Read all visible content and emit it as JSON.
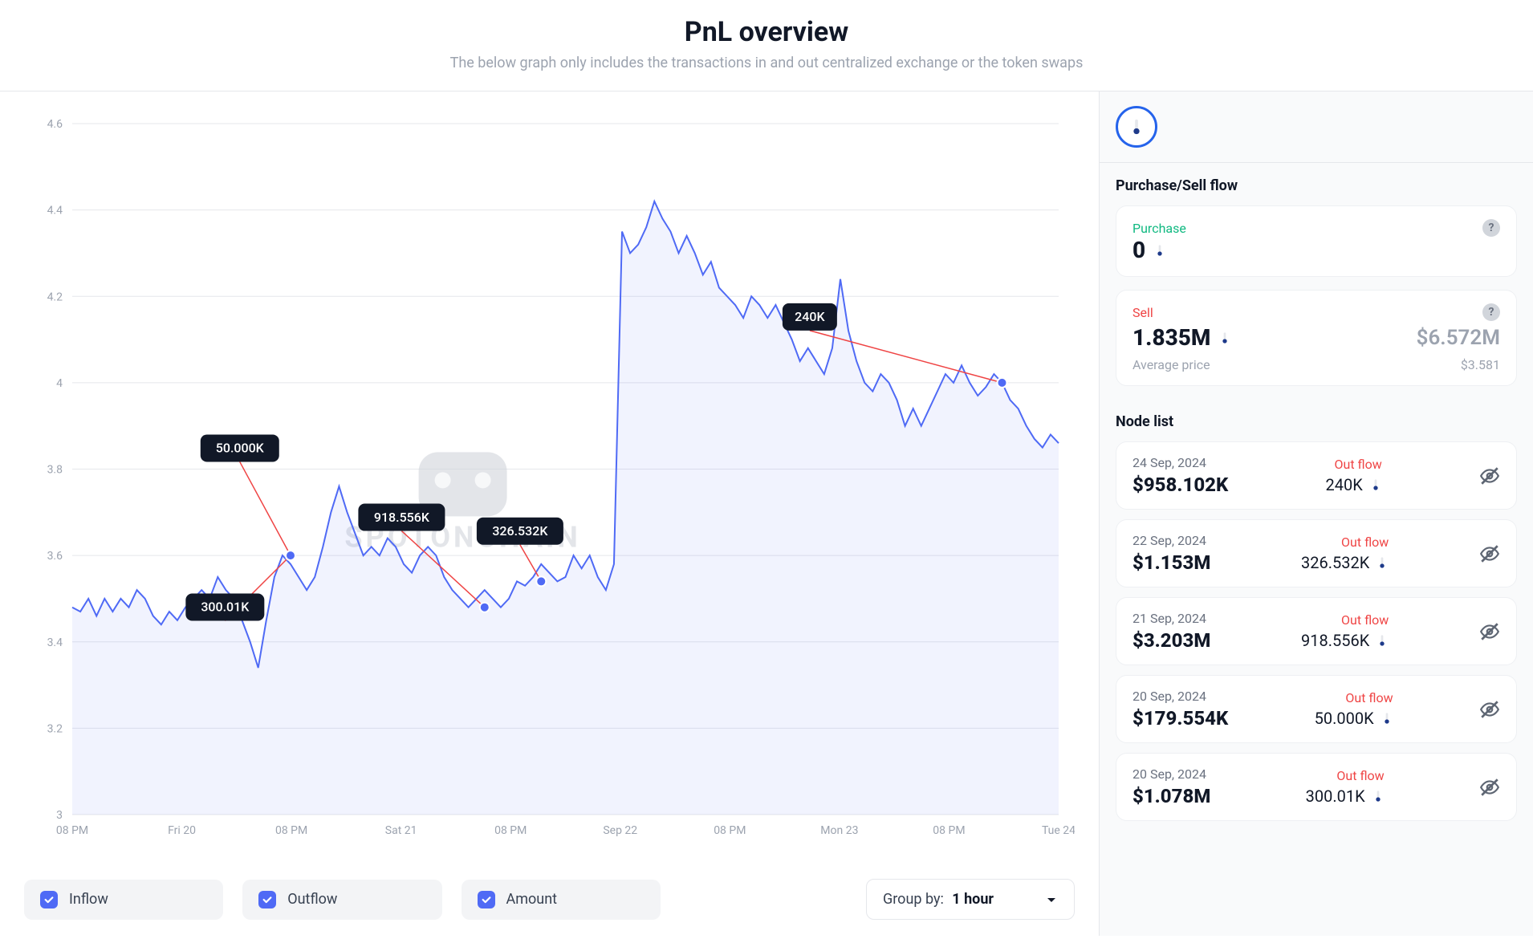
{
  "header": {
    "title": "PnL overview",
    "subtitle": "The below graph only includes the transactions in and out centralized exchange or the token swaps"
  },
  "chart": {
    "type": "line",
    "line_color": "#4f6af5",
    "area_color": "#4f6af5",
    "marker_color": "#4f6af5",
    "grid_color": "#e5e7eb",
    "background_color": "#ffffff",
    "ylim": [
      3.0,
      4.6
    ],
    "ytick_step": 0.2,
    "yticks": [
      "3",
      "3.2",
      "3.4",
      "3.6",
      "3.8",
      "4",
      "4.2",
      "4.4",
      "4.6"
    ],
    "xticks": [
      "08 PM",
      "Fri 20",
      "08 PM",
      "Sat 21",
      "08 PM",
      "Sep 22",
      "08 PM",
      "Mon 23",
      "08 PM",
      "Tue 24"
    ],
    "price_series": [
      3.48,
      3.47,
      3.5,
      3.46,
      3.5,
      3.47,
      3.5,
      3.48,
      3.52,
      3.5,
      3.46,
      3.44,
      3.47,
      3.45,
      3.48,
      3.5,
      3.52,
      3.5,
      3.55,
      3.52,
      3.5,
      3.45,
      3.4,
      3.34,
      3.45,
      3.55,
      3.6,
      3.58,
      3.55,
      3.52,
      3.55,
      3.62,
      3.7,
      3.76,
      3.7,
      3.65,
      3.6,
      3.62,
      3.6,
      3.64,
      3.62,
      3.58,
      3.56,
      3.6,
      3.62,
      3.6,
      3.55,
      3.52,
      3.5,
      3.48,
      3.5,
      3.52,
      3.5,
      3.48,
      3.5,
      3.54,
      3.53,
      3.55,
      3.58,
      3.56,
      3.54,
      3.55,
      3.6,
      3.57,
      3.6,
      3.55,
      3.52,
      3.58,
      4.35,
      4.3,
      4.32,
      4.36,
      4.42,
      4.38,
      4.35,
      4.3,
      4.34,
      4.3,
      4.25,
      4.28,
      4.22,
      4.2,
      4.18,
      4.15,
      4.2,
      4.18,
      4.15,
      4.18,
      4.14,
      4.1,
      4.05,
      4.08,
      4.05,
      4.02,
      4.08,
      4.24,
      4.12,
      4.05,
      4.0,
      3.98,
      4.02,
      4.0,
      3.96,
      3.9,
      3.94,
      3.9,
      3.94,
      3.98,
      4.02,
      4.0,
      4.04,
      4.0,
      3.97,
      3.99,
      4.02,
      4.0,
      3.96,
      3.94,
      3.9,
      3.87,
      3.85,
      3.88,
      3.86
    ],
    "markers": [
      {
        "i": 27,
        "y": 3.6,
        "label": "300.01K",
        "label_x": 0.115,
        "label_y": 0.68
      },
      {
        "i": 27,
        "y": 3.6,
        "label": "50.000K",
        "label_x": 0.13,
        "label_y": 0.45
      },
      {
        "i": 51,
        "y": 3.48,
        "label": "918.556K",
        "label_x": 0.29,
        "label_y": 0.55
      },
      {
        "i": 58,
        "y": 3.54,
        "label": "326.532K",
        "label_x": 0.41,
        "label_y": 0.57
      },
      {
        "i": 115,
        "y": 4.0,
        "label": "240K",
        "label_x": 0.72,
        "label_y": 0.26
      }
    ],
    "watermark_text": "SPOTONCHAIN"
  },
  "controls": {
    "inflow": {
      "label": "Inflow",
      "checked": true,
      "color": "#4f6af5"
    },
    "outflow": {
      "label": "Outflow",
      "checked": true,
      "color": "#4f6af5"
    },
    "amount": {
      "label": "Amount",
      "checked": true,
      "color": "#4f6af5"
    },
    "group_prefix": "Group by: ",
    "group_value": "1 hour"
  },
  "side": {
    "flow_title": "Purchase/Sell flow",
    "purchase": {
      "label": "Purchase",
      "value": "0"
    },
    "sell": {
      "label": "Sell",
      "value": "1.835M",
      "usd": "$6.572M",
      "avg_label": "Average price",
      "avg_value": "$3.581"
    },
    "node_title": "Node list",
    "nodes": [
      {
        "date": "24 Sep, 2024",
        "amount": "$958.102K",
        "tag": "Out flow",
        "qty": "240K"
      },
      {
        "date": "22 Sep, 2024",
        "amount": "$1.153M",
        "tag": "Out flow",
        "qty": "326.532K"
      },
      {
        "date": "21 Sep, 2024",
        "amount": "$3.203M",
        "tag": "Out flow",
        "qty": "918.556K"
      },
      {
        "date": "20 Sep, 2024",
        "amount": "$179.554K",
        "tag": "Out flow",
        "qty": "50.000K"
      },
      {
        "date": "20 Sep, 2024",
        "amount": "$1.078M",
        "tag": "Out flow",
        "qty": "300.01K"
      }
    ]
  }
}
